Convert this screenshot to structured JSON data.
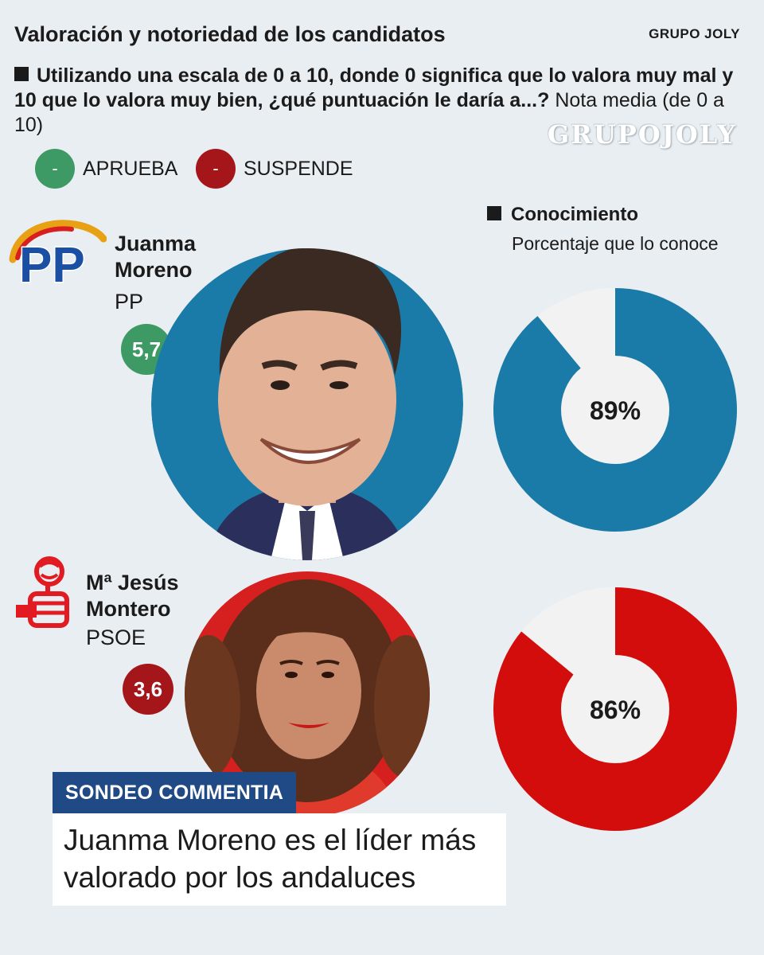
{
  "header": {
    "title": "Valoración y notoriedad de los candidatos",
    "brand": "GRUPO JOLY",
    "question_bold": "Utilizando una escala de 0 a 10, donde 0 significa que lo valora muy mal y 10 que lo valora muy bien, ¿qué puntuación le daría a...?",
    "question_tail": " Nota media (de 0 a 10)",
    "watermark": "GRUPOJOLY"
  },
  "legend": {
    "approve_symbol": "-",
    "approve_label": "APRUEBA",
    "approve_color": "#3e9a64",
    "fail_symbol": "-",
    "fail_label": "SUSPENDE",
    "fail_color": "#a4161a"
  },
  "knowledge": {
    "title": "Conocimiento",
    "subtitle": "Porcentaje que lo conoce"
  },
  "candidates": [
    {
      "name_line1": "Juanma",
      "name_line2": "Moreno",
      "party": "PP",
      "party_logo": "PP",
      "score": "5,7",
      "score_status": "aprueba",
      "color": "#1b7ba8",
      "knowledge_label": "89%"
    },
    {
      "name_line1": "Mª Jesús",
      "name_line2": "Montero",
      "party": "PSOE",
      "party_logo": "psoe-rose-fist-logo",
      "score": "3,6",
      "score_status": "suspende",
      "color": "#d30c0c",
      "knowledge_label": "86%"
    }
  ],
  "footer": {
    "banner": "SONDEO COMMENTIA",
    "headline": "Juanma Moreno es el líder más valorado por los andaluces"
  },
  "chart_data": {
    "type": "pie",
    "title": "Conocimiento",
    "subtitle": "Porcentaje que lo conoce",
    "categories": [
      "Juanma Moreno (PP)",
      "Mª Jesús Montero (PSOE)"
    ],
    "values": [
      89,
      86
    ],
    "unit": "%",
    "ratings": [
      5.7,
      3.6
    ],
    "colors": [
      "#1b7ba8",
      "#d30c0c"
    ]
  }
}
